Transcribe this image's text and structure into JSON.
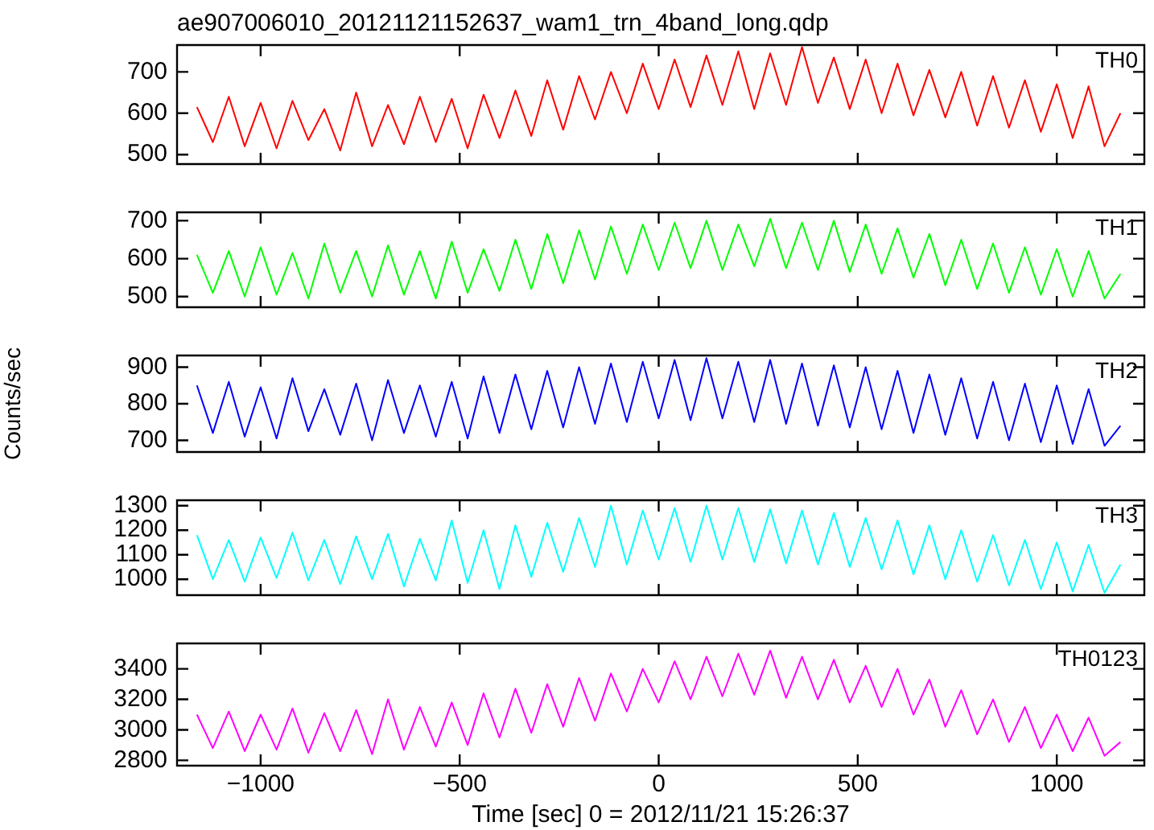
{
  "chart_data": [
    {
      "type": "line",
      "title": "ae907006010_20121121152637_wam1_trn_4band_long.qdp",
      "tick_labels": "y",
      "legend": false,
      "xlim": [
        -1210,
        1220
      ],
      "xticks": [
        -1000,
        -500,
        0,
        500,
        1000
      ],
      "ylim": [
        477,
        765
      ],
      "yticks": [
        500,
        600,
        700
      ],
      "x": [
        -1160,
        -1120,
        -1080,
        -1040,
        -1000,
        -960,
        -920,
        -880,
        -840,
        -800,
        -760,
        -720,
        -680,
        -640,
        -600,
        -560,
        -520,
        -480,
        -440,
        -400,
        -360,
        -320,
        -280,
        -240,
        -200,
        -160,
        -120,
        -80,
        -40,
        0,
        40,
        80,
        120,
        160,
        200,
        240,
        280,
        320,
        360,
        400,
        440,
        480,
        520,
        560,
        600,
        640,
        680,
        720,
        760,
        800,
        840,
        880,
        920,
        960,
        1000,
        1040,
        1080,
        1120,
        1160
      ],
      "series": [
        {
          "name": "TH0",
          "color": "#ff0000",
          "values": [
            615,
            530,
            640,
            520,
            625,
            515,
            630,
            535,
            610,
            510,
            650,
            520,
            620,
            525,
            640,
            530,
            635,
            515,
            645,
            540,
            655,
            545,
            680,
            560,
            690,
            585,
            700,
            600,
            720,
            610,
            730,
            615,
            740,
            620,
            750,
            610,
            745,
            620,
            760,
            625,
            735,
            610,
            730,
            600,
            720,
            595,
            705,
            590,
            700,
            570,
            690,
            565,
            680,
            555,
            670,
            540,
            665,
            520,
            600
          ]
        }
      ]
    },
    {
      "type": "line",
      "tick_labels": "y",
      "legend": false,
      "xlim": [
        -1210,
        1220
      ],
      "xticks": [
        -1000,
        -500,
        0,
        500,
        1000
      ],
      "ylim": [
        472,
        722
      ],
      "yticks": [
        500,
        600,
        700
      ],
      "x": [
        -1160,
        -1120,
        -1080,
        -1040,
        -1000,
        -960,
        -920,
        -880,
        -840,
        -800,
        -760,
        -720,
        -680,
        -640,
        -600,
        -560,
        -520,
        -480,
        -440,
        -400,
        -360,
        -320,
        -280,
        -240,
        -200,
        -160,
        -120,
        -80,
        -40,
        0,
        40,
        80,
        120,
        160,
        200,
        240,
        280,
        320,
        360,
        400,
        440,
        480,
        520,
        560,
        600,
        640,
        680,
        720,
        760,
        800,
        840,
        880,
        920,
        960,
        1000,
        1040,
        1080,
        1120,
        1160
      ],
      "series": [
        {
          "name": "TH1",
          "color": "#00ff00",
          "values": [
            610,
            510,
            620,
            500,
            630,
            505,
            615,
            495,
            640,
            510,
            620,
            500,
            635,
            505,
            620,
            495,
            645,
            510,
            625,
            515,
            650,
            520,
            665,
            535,
            675,
            545,
            685,
            560,
            690,
            570,
            695,
            575,
            700,
            570,
            690,
            580,
            705,
            575,
            695,
            570,
            700,
            565,
            690,
            560,
            680,
            550,
            665,
            530,
            650,
            520,
            640,
            510,
            630,
            505,
            625,
            500,
            620,
            495,
            560
          ]
        }
      ]
    },
    {
      "type": "line",
      "ylabel": "Counts/sec",
      "tick_labels": "y",
      "legend": false,
      "xlim": [
        -1210,
        1220
      ],
      "xticks": [
        -1000,
        -500,
        0,
        500,
        1000
      ],
      "ylim": [
        668,
        932
      ],
      "yticks": [
        700,
        800,
        900
      ],
      "x": [
        -1160,
        -1120,
        -1080,
        -1040,
        -1000,
        -960,
        -920,
        -880,
        -840,
        -800,
        -760,
        -720,
        -680,
        -640,
        -600,
        -560,
        -520,
        -480,
        -440,
        -400,
        -360,
        -320,
        -280,
        -240,
        -200,
        -160,
        -120,
        -80,
        -40,
        0,
        40,
        80,
        120,
        160,
        200,
        240,
        280,
        320,
        360,
        400,
        440,
        480,
        520,
        560,
        600,
        640,
        680,
        720,
        760,
        800,
        840,
        880,
        920,
        960,
        1000,
        1040,
        1080,
        1120,
        1160
      ],
      "series": [
        {
          "name": "TH2",
          "color": "#0000ff",
          "values": [
            850,
            720,
            860,
            710,
            845,
            705,
            870,
            725,
            840,
            715,
            855,
            700,
            865,
            720,
            850,
            710,
            860,
            705,
            875,
            720,
            880,
            730,
            890,
            735,
            900,
            745,
            910,
            750,
            915,
            760,
            920,
            755,
            925,
            760,
            915,
            750,
            920,
            745,
            910,
            740,
            905,
            735,
            900,
            730,
            890,
            720,
            880,
            715,
            870,
            705,
            860,
            700,
            855,
            695,
            850,
            690,
            840,
            685,
            740
          ]
        }
      ]
    },
    {
      "type": "line",
      "tick_labels": "y",
      "legend": false,
      "xlim": [
        -1210,
        1220
      ],
      "xticks": [
        -1000,
        -500,
        0,
        500,
        1000
      ],
      "ylim": [
        935,
        1322
      ],
      "yticks": [
        1000,
        1100,
        1200,
        1300
      ],
      "x": [
        -1160,
        -1120,
        -1080,
        -1040,
        -1000,
        -960,
        -920,
        -880,
        -840,
        -800,
        -760,
        -720,
        -680,
        -640,
        -600,
        -560,
        -520,
        -480,
        -440,
        -400,
        -360,
        -320,
        -280,
        -240,
        -200,
        -160,
        -120,
        -80,
        -40,
        0,
        40,
        80,
        120,
        160,
        200,
        240,
        280,
        320,
        360,
        400,
        440,
        480,
        520,
        560,
        600,
        640,
        680,
        720,
        760,
        800,
        840,
        880,
        920,
        960,
        1000,
        1040,
        1080,
        1120,
        1160
      ],
      "series": [
        {
          "name": "TH3",
          "color": "#00ffff",
          "values": [
            1180,
            1000,
            1160,
            990,
            1170,
            1005,
            1190,
            995,
            1160,
            980,
            1175,
            1000,
            1185,
            970,
            1165,
            995,
            1240,
            985,
            1200,
            960,
            1220,
            1010,
            1230,
            1030,
            1250,
            1050,
            1300,
            1060,
            1280,
            1080,
            1290,
            1070,
            1300,
            1080,
            1290,
            1070,
            1285,
            1065,
            1280,
            1060,
            1270,
            1050,
            1250,
            1040,
            1240,
            1020,
            1220,
            1000,
            1200,
            990,
            1180,
            975,
            1160,
            960,
            1150,
            950,
            1140,
            945,
            1060
          ]
        }
      ]
    },
    {
      "type": "line",
      "xlabel": "Time [sec] 0 = 2012/11/21 15:26:37",
      "legend": false,
      "xlim": [
        -1210,
        1220
      ],
      "xticks": [
        -1000,
        -500,
        0,
        500,
        1000
      ],
      "ylim": [
        2765,
        3567
      ],
      "yticks": [
        2800,
        3000,
        3200,
        3400
      ],
      "x": [
        -1160,
        -1120,
        -1080,
        -1040,
        -1000,
        -960,
        -920,
        -880,
        -840,
        -800,
        -760,
        -720,
        -680,
        -640,
        -600,
        -560,
        -520,
        -480,
        -440,
        -400,
        -360,
        -320,
        -280,
        -240,
        -200,
        -160,
        -120,
        -80,
        -40,
        0,
        40,
        80,
        120,
        160,
        200,
        240,
        280,
        320,
        360,
        400,
        440,
        480,
        520,
        560,
        600,
        640,
        680,
        720,
        760,
        800,
        840,
        880,
        920,
        960,
        1000,
        1040,
        1080,
        1120,
        1160
      ],
      "series": [
        {
          "name": "TH0123",
          "color": "#ff00ff",
          "values": [
            3100,
            2880,
            3120,
            2860,
            3100,
            2870,
            3140,
            2850,
            3110,
            2860,
            3130,
            2840,
            3200,
            2870,
            3150,
            2890,
            3180,
            2900,
            3240,
            2950,
            3270,
            2980,
            3300,
            3020,
            3340,
            3060,
            3370,
            3120,
            3400,
            3180,
            3450,
            3200,
            3480,
            3220,
            3500,
            3230,
            3520,
            3210,
            3480,
            3200,
            3460,
            3180,
            3420,
            3150,
            3400,
            3100,
            3330,
            3020,
            3260,
            2970,
            3200,
            2920,
            3150,
            2880,
            3100,
            2860,
            3080,
            2830,
            2920
          ]
        }
      ]
    }
  ]
}
